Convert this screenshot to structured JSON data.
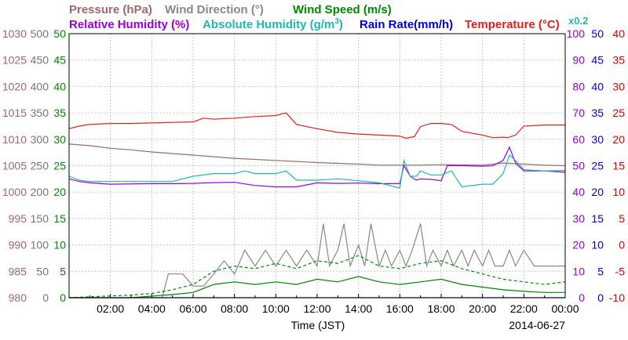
{
  "chart_data": {
    "type": "line",
    "date": "2014-06-27",
    "xlabel": "Time (JST)",
    "x_ticks": [
      "02:00",
      "04:00",
      "06:00",
      "08:00",
      "10:00",
      "12:00",
      "14:00",
      "16:00",
      "18:00",
      "20:00",
      "22:00",
      "00:00"
    ],
    "grid": true,
    "titles": {
      "pressure": "Pressure (hPa)",
      "wind_direction_prefix": "Wind Direction (",
      "wind_direction_suffix": ")",
      "degree_symbol": "°",
      "wind_speed": "Wind Speed (m/s)",
      "relative_humidity": "Relative Humidity (%)",
      "absolute_humidity_prefix": "Absolute Humidity (g/m",
      "absolute_humidity_sup": "3",
      "absolute_humidity_suffix": ")",
      "rain_rate": "Rain Rate(mm/h)",
      "temperature_prefix": "Temperature (",
      "temperature_unit": "C",
      "temperature_suffix": ")",
      "scale_note": "x0.2"
    },
    "axes": {
      "pressure": {
        "label": "Pressure (hPa)",
        "min": 980,
        "max": 1030,
        "ticks": [
          "1030",
          "1025",
          "1020",
          "1015",
          "1010",
          "1005",
          "1000",
          "995",
          "990",
          "985",
          "980"
        ],
        "color": "#a06868"
      },
      "wind_direction": {
        "label": "Wind Direction (°)",
        "min": 0,
        "max": 500,
        "ticks": [
          "500",
          "450",
          "400",
          "350",
          "300",
          "250",
          "200",
          "150",
          "100",
          "50",
          "0"
        ],
        "color": "#777777"
      },
      "wind_speed": {
        "label": "Wind Speed (m/s)",
        "min": 0,
        "max": 50,
        "ticks": [
          "50",
          "45",
          "40",
          "35",
          "30",
          "25",
          "20",
          "15",
          "10",
          "5",
          "0"
        ],
        "color": "#008800"
      },
      "relative_humidity": {
        "label": "Relative Humidity (%)",
        "min": 0,
        "max": 100,
        "ticks": [
          "100",
          "90",
          "80",
          "70",
          "60",
          "50",
          "40",
          "30",
          "20",
          "10",
          "0"
        ],
        "color": "#9900cc"
      },
      "rain_rate": {
        "label": "Rain Rate(mm/h)",
        "min": 0,
        "max": 50,
        "ticks": [
          "50",
          "45",
          "40",
          "35",
          "30",
          "25",
          "20",
          "15",
          "10",
          "5",
          "0"
        ],
        "color": "#0000cc"
      },
      "temperature": {
        "label": "Temperature (°C)",
        "min": -10,
        "max": 40,
        "ticks": [
          "40",
          "35",
          "30",
          "25",
          "20",
          "15",
          "10",
          "5",
          "0",
          "-5",
          "-10"
        ],
        "color": "#dd0000"
      }
    },
    "series": [
      {
        "name": "Temperature (°C)",
        "axis": "temperature",
        "color": "#e02020",
        "x": [
          0,
          0.5,
          1,
          2,
          3,
          4,
          5,
          6,
          6.5,
          7,
          8,
          9,
          10,
          10.5,
          11,
          12,
          13,
          14,
          15,
          16,
          16.3,
          16.7,
          17,
          17.5,
          18,
          18.5,
          19,
          20,
          20.5,
          21,
          21.2,
          21.6,
          22,
          23,
          24
        ],
        "y": [
          22,
          22.5,
          22.8,
          23,
          23,
          23.1,
          23.2,
          23.3,
          24,
          23.8,
          24,
          24.3,
          24.5,
          25,
          22.8,
          22,
          21.3,
          21,
          20.8,
          20.6,
          20.2,
          20.5,
          22.4,
          23,
          23,
          22.8,
          21.5,
          20.8,
          20.3,
          20.4,
          20.3,
          20.8,
          22.5,
          22.7,
          22.7
        ]
      },
      {
        "name": "Pressure (hPa)",
        "axis": "pressure",
        "color": "#a06868",
        "x": [
          0,
          1,
          2,
          3,
          4,
          6,
          8,
          10,
          12,
          14,
          15,
          16,
          17,
          18,
          20,
          21,
          22,
          23,
          24
        ],
        "y": [
          1009.1,
          1008.8,
          1008.3,
          1008,
          1007.6,
          1007,
          1006.4,
          1006,
          1005.6,
          1005.3,
          1005.1,
          1005.1,
          1005.1,
          1005.2,
          1005.1,
          1005.5,
          1005.3,
          1005.1,
          1005
        ]
      },
      {
        "name": "Relative Humidity (%)",
        "axis": "relative_humidity",
        "color": "#9900dd",
        "x": [
          0,
          0.5,
          1,
          2,
          4,
          5,
          6,
          7,
          8,
          9,
          10,
          11,
          12,
          13,
          14,
          15,
          16,
          16.2,
          16.5,
          16.8,
          17,
          17.5,
          18,
          18.3,
          19,
          20,
          20.5,
          21,
          21.3,
          21.6,
          22,
          23,
          24
        ],
        "y": [
          45,
          44,
          43.5,
          43,
          43.2,
          43.2,
          43.3,
          43.6,
          43.7,
          42.5,
          42,
          42,
          43.5,
          43.3,
          43.4,
          43.2,
          43.2,
          50,
          46,
          44.5,
          45,
          44.8,
          44.3,
          50,
          50,
          49.8,
          50,
          52,
          57,
          51,
          48,
          48,
          47.5
        ]
      },
      {
        "name": "Absolute Humidity (g/m3)",
        "axis": "relative_humidity",
        "color": "#20b8b0",
        "x": [
          0,
          0.5,
          1,
          2,
          4,
          5,
          6,
          7,
          8,
          8.5,
          9,
          10,
          10.5,
          11,
          12,
          13,
          14,
          15,
          16,
          16.2,
          16.5,
          16.8,
          17,
          17.5,
          18,
          18.5,
          19,
          20,
          20.5,
          21,
          21.3,
          21.6,
          22,
          23,
          24
        ],
        "y": [
          46,
          44.5,
          44,
          44,
          44,
          44,
          46,
          47,
          47,
          48,
          47,
          47,
          48,
          44.5,
          44.5,
          45,
          44.3,
          43.5,
          41.5,
          52,
          46,
          46,
          48,
          46.5,
          46.5,
          48,
          42,
          43,
          43,
          47,
          54,
          52,
          48.5,
          48,
          48.2
        ]
      },
      {
        "name": "Rain Rate(mm/h)",
        "axis": "rain_rate",
        "color": "#0000dd",
        "x": [
          0,
          24
        ],
        "y": [
          0,
          0
        ]
      },
      {
        "name": "Wind Direction (°)",
        "axis": "wind_direction",
        "color": "#888888",
        "x": [
          0,
          4.5,
          4.8,
          5.5,
          6,
          6.5,
          7,
          7.5,
          8,
          8.5,
          9,
          9.5,
          10,
          10.5,
          11,
          11.5,
          12,
          12.3,
          12.6,
          13,
          13.3,
          13.6,
          14,
          14.3,
          14.6,
          15,
          15.3,
          15.6,
          16,
          16.3,
          16.6,
          17,
          17.3,
          17.6,
          18,
          18.3,
          18.6,
          19,
          19.3,
          19.6,
          20,
          20.3,
          20.6,
          21,
          21.3,
          21.6,
          22,
          22.5,
          23,
          23.5,
          24
        ],
        "y": [
          0,
          0,
          45,
          45,
          22,
          22,
          45,
          70,
          45,
          90,
          60,
          90,
          60,
          90,
          60,
          90,
          60,
          140,
          60,
          90,
          140,
          60,
          100,
          60,
          140,
          60,
          90,
          60,
          90,
          60,
          90,
          140,
          60,
          90,
          60,
          90,
          60,
          90,
          60,
          90,
          60,
          90,
          60,
          60,
          90,
          60,
          90,
          60,
          60,
          60,
          60
        ]
      },
      {
        "name": "Wind Speed (m/s)",
        "axis": "wind_speed",
        "color": "#008800",
        "x": [
          0,
          3,
          4,
          5,
          6,
          7,
          8,
          9,
          10,
          11,
          12,
          13,
          14,
          15,
          16,
          17,
          18,
          19,
          20,
          21,
          22,
          23,
          24
        ],
        "y": [
          0,
          0,
          0.3,
          0.6,
          1,
          2.5,
          3,
          2.5,
          3,
          2.5,
          3.5,
          3,
          4,
          3,
          2.5,
          3,
          3.5,
          2.5,
          2,
          1.5,
          1.2,
          1,
          1
        ]
      },
      {
        "name": "Wind Speed (m/s) gust",
        "axis": "wind_speed",
        "color": "#008800",
        "dashed": true,
        "x": [
          0,
          3,
          4,
          5,
          6,
          7,
          8,
          9,
          10,
          11,
          12,
          13,
          14,
          15,
          16,
          17,
          18,
          19,
          20,
          21,
          22,
          23,
          24
        ],
        "y": [
          0,
          0.5,
          0.8,
          1.5,
          2.5,
          5,
          6,
          5.5,
          6.5,
          5.5,
          7,
          6.5,
          8,
          6,
          5.5,
          6.5,
          7,
          5.5,
          4.5,
          3.5,
          3,
          2.5,
          3
        ]
      }
    ]
  }
}
